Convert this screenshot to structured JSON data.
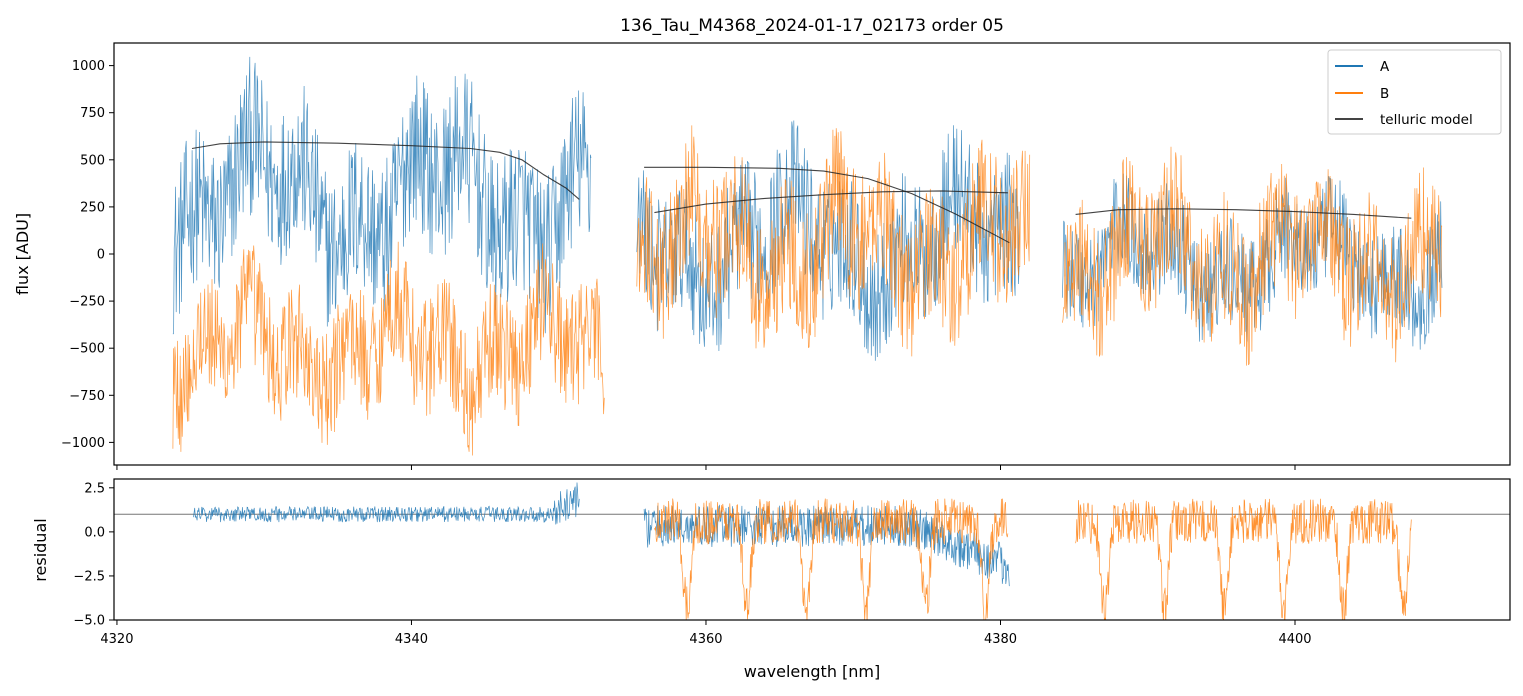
{
  "chart_data": [
    {
      "type": "line",
      "title": "136_Tau_M4368_2024-01-17_02173  order 05",
      "xlabel": "",
      "ylabel": "flux [ADU]",
      "xlim": [
        4319.8,
        4414.6
      ],
      "ylim": [
        -1120,
        1120
      ],
      "yticks": [
        -1000,
        -750,
        -500,
        -250,
        0,
        250,
        500,
        750,
        1000
      ],
      "ytick_labels": [
        "−1000",
        "−750",
        "−500",
        "−250",
        "0",
        "250",
        "500",
        "750",
        "1000"
      ],
      "grid": false,
      "legend": {
        "position": "top-right",
        "entries": [
          "A",
          "B",
          "telluric model"
        ]
      },
      "series": [
        {
          "name": "A",
          "color": "#1f77b4",
          "segments": [
            [
              4323.8,
              4352.2
            ],
            [
              4355.3,
              4381.3
            ],
            [
              4384.2,
              4410.0
            ]
          ]
        },
        {
          "name": "B",
          "color": "#ff7f0e",
          "segments": [
            [
              4323.8,
              4353.1
            ],
            [
              4355.3,
              4382.0
            ],
            [
              4384.2,
              4410.0
            ]
          ]
        },
        {
          "name": "telluric model",
          "color": "#222222",
          "curves": [
            {
              "x": [
                4325.1,
                4327,
                4330,
                4335,
                4340,
                4344,
                4346,
                4347.5,
                4349,
                4350.5,
                4351.4
              ],
              "y": [
                560,
                585,
                595,
                588,
                575,
                560,
                540,
                500,
                420,
                350,
                290
              ]
            },
            {
              "x": [
                4355.8,
                4360,
                4365,
                4368,
                4371,
                4374,
                4377,
                4380.6
              ],
              "y": [
                460,
                460,
                455,
                440,
                400,
                320,
                210,
                60
              ]
            },
            {
              "x": [
                4356.5,
                4360,
                4364,
                4368,
                4372,
                4376,
                4380.5
              ],
              "y": [
                220,
                265,
                295,
                315,
                330,
                335,
                325
              ]
            },
            {
              "x": [
                4385.1,
                4388,
                4392,
                4396,
                4400,
                4404,
                4407.9
              ],
              "y": [
                210,
                235,
                240,
                235,
                225,
                210,
                190
              ]
            }
          ]
        }
      ]
    },
    {
      "type": "line",
      "title": "",
      "xlabel": "wavelength [nm]",
      "ylabel": "residual",
      "xlim": [
        4319.8,
        4414.6
      ],
      "ylim": [
        -5.0,
        3.0
      ],
      "xticks": [
        4320,
        4340,
        4360,
        4380,
        4400
      ],
      "xtick_labels": [
        "4320",
        "4340",
        "4360",
        "4380",
        "4400"
      ],
      "yticks": [
        -5.0,
        -2.5,
        0.0,
        2.5
      ],
      "ytick_labels": [
        "−5.0",
        "−2.5",
        "0.0",
        "2.5"
      ],
      "reference_line": 1.0,
      "grid": false,
      "series": [
        {
          "name": "A",
          "color": "#1f77b4",
          "segments": [
            [
              4325.2,
              4351.4
            ],
            [
              4355.8,
              4380.6
            ]
          ]
        },
        {
          "name": "B",
          "color": "#ff7f0e",
          "segments": [
            [
              4356.5,
              4380.5
            ],
            [
              4385.1,
              4407.9
            ]
          ]
        }
      ]
    }
  ]
}
